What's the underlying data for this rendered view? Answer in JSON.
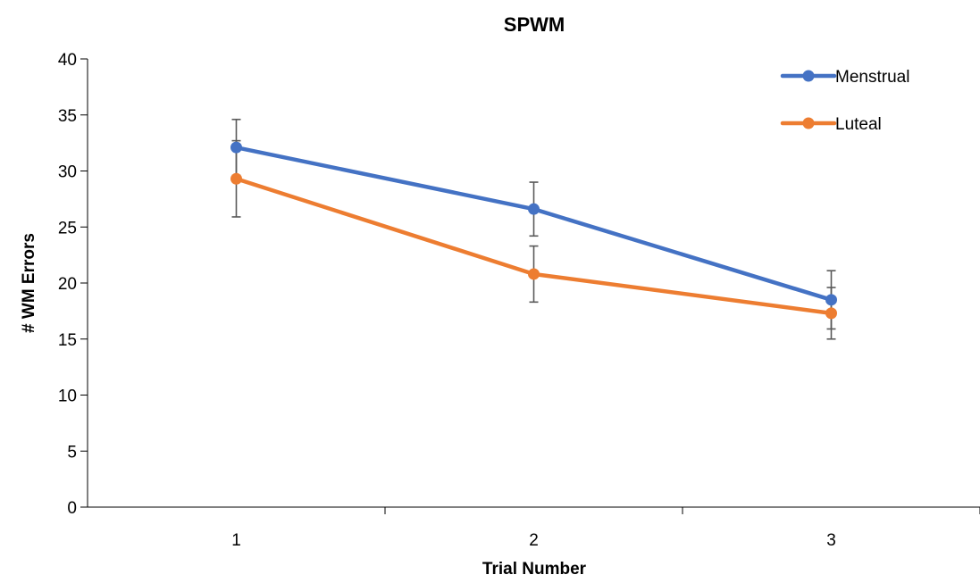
{
  "chart_data": {
    "type": "line",
    "title": "SPWM",
    "xlabel": "Trial Number",
    "ylabel": "# WM Errors",
    "categories": [
      "1",
      "2",
      "3"
    ],
    "ylim": [
      0,
      40
    ],
    "yticks": [
      0,
      5,
      10,
      15,
      20,
      25,
      30,
      35,
      40
    ],
    "grid": false,
    "legend_position": "top-right",
    "series": [
      {
        "name": "Menstrual",
        "color": "#4472C4",
        "values": [
          32.1,
          26.6,
          18.5
        ],
        "error": [
          2.5,
          2.4,
          2.6
        ]
      },
      {
        "name": "Luteal",
        "color": "#ED7D31",
        "values": [
          29.3,
          20.8,
          17.3
        ],
        "error": [
          3.4,
          2.5,
          2.3
        ]
      }
    ]
  }
}
